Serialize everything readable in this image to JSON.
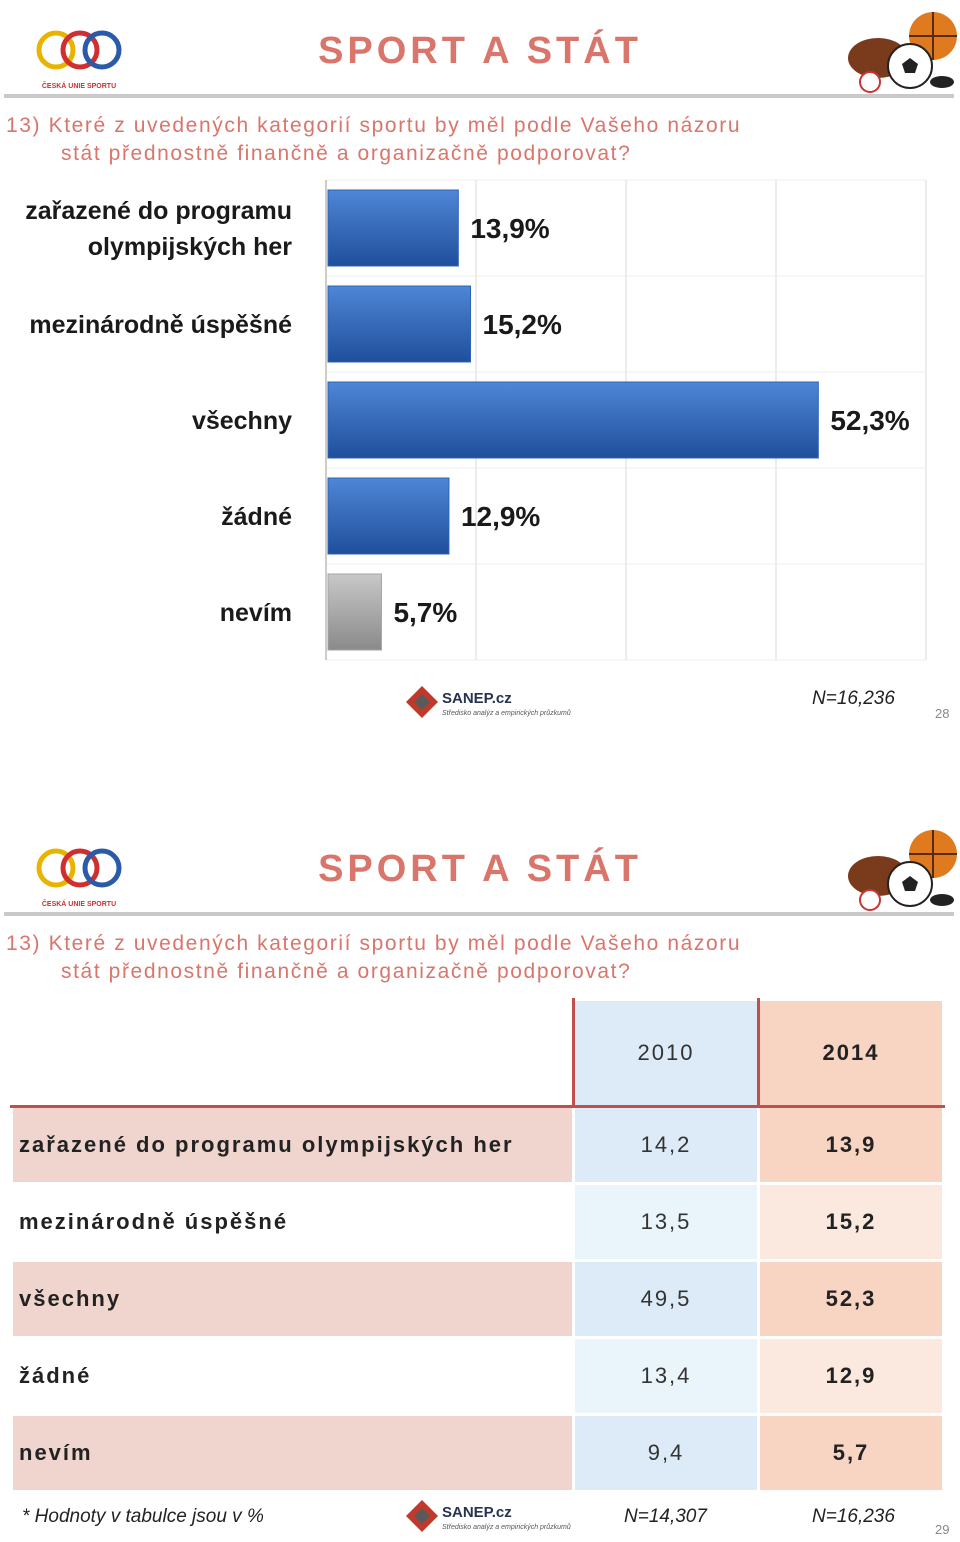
{
  "slide1": {
    "title": "SPORT A STÁT",
    "logo_label": "ČESKÁ UNIE SPORTU",
    "question_line1": "13) Které z uvedených kategorií sportu by měl podle Vašeho názoru",
    "question_line2": "stát přednostně finančně a organizačně podporovat?",
    "sanep_name": "SANEP.cz",
    "sanep_tagline": "Středisko analýz a empirických průzkumů",
    "n_note": "N=16,236",
    "page_number": "28"
  },
  "chart_data": {
    "type": "bar",
    "orientation": "horizontal",
    "categories": [
      "zařazené do programu olympijských her",
      "mezinárodně úspěšné",
      "všechny",
      "žádné",
      "nevím"
    ],
    "category_lines": [
      [
        "zařazené do programu",
        "olympijských her"
      ],
      [
        "mezinárodně úspěšné"
      ],
      [
        "všechny"
      ],
      [
        "žádné"
      ],
      [
        "nevím"
      ]
    ],
    "values": [
      13.9,
      15.2,
      52.3,
      12.9,
      5.7
    ],
    "value_labels": [
      "13,9%",
      "15,2%",
      "52,3%",
      "12,9%",
      "5,7%"
    ],
    "colors": [
      "#2e64b8",
      "#2e64b8",
      "#2e64b8",
      "#2e64b8",
      "#a3a3a3"
    ],
    "xlim": [
      0,
      64
    ],
    "grid": true,
    "unit": "%"
  },
  "slide2": {
    "title": "SPORT A STÁT",
    "logo_label": "ČESKÁ UNIE SPORTU",
    "question_line1": "13) Které z uvedených kategorií sportu by měl podle Vašeho názoru",
    "question_line2": "stát přednostně finančně a organizačně podporovat?",
    "table": {
      "headers": [
        "",
        "2010",
        "2014"
      ],
      "rows": [
        {
          "label": "zařazené do programu olympijských her",
          "y2010": "14,2",
          "y2014": "13,9"
        },
        {
          "label": "mezinárodně úspěšné",
          "y2010": "13,5",
          "y2014": "15,2"
        },
        {
          "label": "všechny",
          "y2010": "49,5",
          "y2014": "52,3"
        },
        {
          "label": "žádné",
          "y2010": "13,4",
          "y2014": "12,9"
        },
        {
          "label": "nevím",
          "y2010": "9,4",
          "y2014": "5,7"
        }
      ]
    },
    "footnote": "* Hodnoty v tabulce jsou v %",
    "sanep_name": "SANEP.cz",
    "sanep_tagline": "Středisko analýz a empirických průzkumů",
    "n_note_2010": "N=14,307",
    "n_note_2014": "N=16,236",
    "page_number": "29",
    "colors": {
      "accent": "#c0504d",
      "blue_light": "#dcebf7",
      "blue_pale": "#eaf4fb",
      "peach": "#f8d5c3",
      "peach_pale": "#fbe9e0",
      "rose": "#f0d5cf"
    }
  }
}
